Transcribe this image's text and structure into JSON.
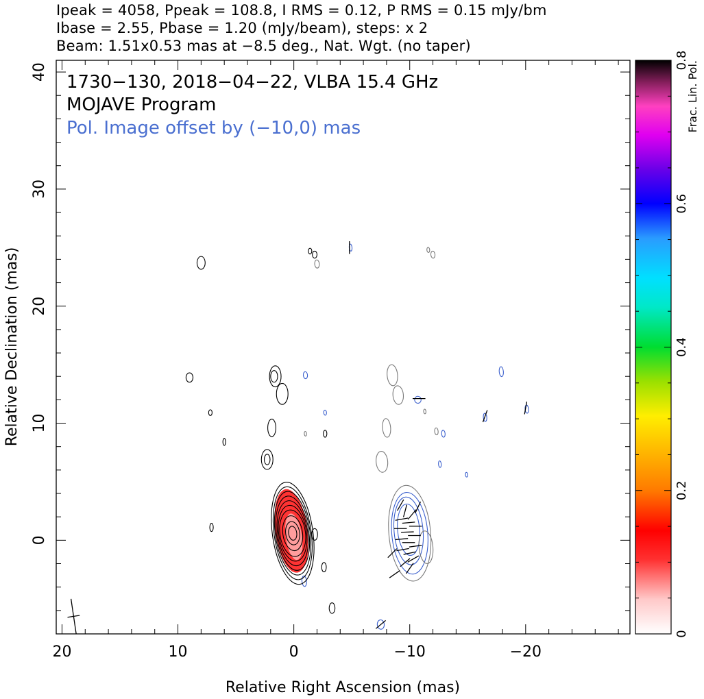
{
  "header": {
    "line1": "Ipeak = 4058, Ppeak = 108.8, I RMS = 0.12, P RMS = 0.15 mJy/bm",
    "line2": "Ibase = 2.55, Pbase = 1.20 (mJy/beam), steps: x 2",
    "line3": "Beam: 1.51x0.53 mas at −8.5 deg., Nat. Wgt. (no taper)"
  },
  "chart_data": {
    "type": "contour",
    "annotations": {
      "source": "1730−130, 2018−04−22, VLBA 15.4 GHz",
      "program": "MOJAVE Program",
      "offset_note": "Pol. Image offset by (−10,0) mas"
    },
    "xlabel": "Relative Right Ascension (mas)",
    "ylabel": "Relative Declination (mas)",
    "xlim": [
      20.5,
      -29
    ],
    "ylim": [
      -8,
      41
    ],
    "x_ticks": [
      20,
      10,
      0,
      -10,
      -20
    ],
    "x_tick_labels": [
      "20",
      "10",
      "0",
      "−10",
      "−20"
    ],
    "y_ticks": [
      0,
      10,
      20,
      30,
      40
    ],
    "y_tick_labels": [
      "0",
      "10",
      "20",
      "30",
      "40"
    ],
    "colorbar": {
      "label": "Frac. Lin. Pol.",
      "range": [
        0,
        0.8
      ],
      "ticks": [
        0,
        0.2,
        0.4,
        0.6,
        0.8
      ],
      "tick_labels": [
        "0",
        "0.2",
        "0.4",
        "0.6",
        "0.8"
      ]
    },
    "colors": {
      "stokes_i": "#000000",
      "polarization": "#3a5fcd",
      "pol_outer": "#7a7a7a",
      "offset_text": "#4a6fd0"
    },
    "stokes_i_core": {
      "x": 0.1,
      "y": 0.6,
      "levels": [
        {
          "rx": 1.1,
          "ry": 2.0
        },
        {
          "rx": 1.2,
          "ry": 2.4
        },
        {
          "rx": 1.3,
          "ry": 2.8
        },
        {
          "rx": 1.4,
          "ry": 3.2
        },
        {
          "rx": 1.5,
          "ry": 3.6
        },
        {
          "rx": 1.6,
          "ry": 4.0
        },
        {
          "rx": 1.75,
          "ry": 4.4
        },
        {
          "rx": 0.85,
          "ry": 1.5
        },
        {
          "rx": 0.6,
          "ry": 1.0
        },
        {
          "rx": 0.35,
          "ry": 0.6
        }
      ]
    },
    "stokes_i_blobs": [
      {
        "x": 1.6,
        "y": 14.0,
        "rx": 0.5,
        "ry": 0.9
      },
      {
        "x": 1.7,
        "y": 14.0,
        "rx": 0.3,
        "ry": 0.5
      },
      {
        "x": 1.0,
        "y": 12.5,
        "rx": 0.5,
        "ry": 0.9
      },
      {
        "x": 1.9,
        "y": 9.6,
        "rx": 0.35,
        "ry": 0.75
      },
      {
        "x": 2.3,
        "y": 6.9,
        "rx": 0.5,
        "ry": 0.85
      },
      {
        "x": 2.3,
        "y": 6.9,
        "rx": 0.25,
        "ry": 0.45
      },
      {
        "x": 8.0,
        "y": 23.7,
        "rx": 0.35,
        "ry": 0.55
      },
      {
        "x": 9.0,
        "y": 13.9,
        "rx": 0.3,
        "ry": 0.4
      },
      {
        "x": 7.2,
        "y": 10.9,
        "rx": 0.15,
        "ry": 0.25
      },
      {
        "x": 6.0,
        "y": 8.4,
        "rx": 0.12,
        "ry": 0.3
      },
      {
        "x": 7.1,
        "y": 1.1,
        "rx": 0.15,
        "ry": 0.35
      },
      {
        "x": -1.4,
        "y": 24.7,
        "rx": 0.15,
        "ry": 0.25
      },
      {
        "x": -1.8,
        "y": 24.4,
        "rx": 0.2,
        "ry": 0.3
      },
      {
        "x": -2.7,
        "y": 9.1,
        "rx": 0.15,
        "ry": 0.3
      },
      {
        "x": -2.6,
        "y": -2.3,
        "rx": 0.2,
        "ry": 0.4
      },
      {
        "x": -3.3,
        "y": -5.8,
        "rx": 0.25,
        "ry": 0.45
      },
      {
        "x": -1.8,
        "y": 0.5,
        "rx": 0.25,
        "ry": 0.5
      }
    ],
    "pol_blobs": [
      {
        "x": -10.0,
        "y": 0.6,
        "rx": 1.8,
        "ry": 4.1,
        "color": "#7a7a7a"
      },
      {
        "x": -10.0,
        "y": 0.6,
        "rx": 1.55,
        "ry": 3.5,
        "color": "#3a5fcd"
      },
      {
        "x": -9.9,
        "y": 0.8,
        "rx": 1.25,
        "ry": 2.9,
        "color": "#3a5fcd"
      },
      {
        "x": -9.9,
        "y": 0.9,
        "rx": 0.95,
        "ry": 2.2,
        "color": "#3a5fcd"
      },
      {
        "x": -11.4,
        "y": -0.6,
        "rx": 0.6,
        "ry": 1.4,
        "color": "#7a7a7a"
      },
      {
        "x": -8.5,
        "y": 14.1,
        "rx": 0.45,
        "ry": 0.9,
        "color": "#7a7a7a"
      },
      {
        "x": -9.0,
        "y": 12.4,
        "rx": 0.45,
        "ry": 0.8,
        "color": "#7a7a7a"
      },
      {
        "x": -8.0,
        "y": 9.6,
        "rx": 0.35,
        "ry": 0.8,
        "color": "#7a7a7a"
      },
      {
        "x": -7.6,
        "y": 6.7,
        "rx": 0.5,
        "ry": 0.9,
        "color": "#7a7a7a"
      },
      {
        "x": -1.0,
        "y": 14.1,
        "rx": 0.18,
        "ry": 0.3,
        "color": "#3a5fcd"
      },
      {
        "x": -2.7,
        "y": 10.9,
        "rx": 0.12,
        "ry": 0.22,
        "color": "#3a5fcd"
      },
      {
        "x": -2.0,
        "y": 23.6,
        "rx": 0.2,
        "ry": 0.35,
        "color": "#7a7a7a"
      },
      {
        "x": -4.9,
        "y": 25.0,
        "rx": 0.12,
        "ry": 0.3,
        "color": "#3a5fcd"
      },
      {
        "x": -11.6,
        "y": 24.8,
        "rx": 0.12,
        "ry": 0.22,
        "color": "#7a7a7a"
      },
      {
        "x": -12.0,
        "y": 24.4,
        "rx": 0.18,
        "ry": 0.3,
        "color": "#7a7a7a"
      },
      {
        "x": -10.7,
        "y": 12.0,
        "rx": 0.28,
        "ry": 0.3,
        "color": "#3a5fcd"
      },
      {
        "x": -11.3,
        "y": 11.0,
        "rx": 0.1,
        "ry": 0.2,
        "color": "#7a7a7a"
      },
      {
        "x": -12.3,
        "y": 9.3,
        "rx": 0.15,
        "ry": 0.3,
        "color": "#7a7a7a"
      },
      {
        "x": -12.9,
        "y": 9.1,
        "rx": 0.15,
        "ry": 0.3,
        "color": "#3a5fcd"
      },
      {
        "x": -12.6,
        "y": 6.5,
        "rx": 0.12,
        "ry": 0.28,
        "color": "#3a5fcd"
      },
      {
        "x": -14.9,
        "y": 5.6,
        "rx": 0.1,
        "ry": 0.2,
        "color": "#3a5fcd"
      },
      {
        "x": -17.9,
        "y": 14.4,
        "rx": 0.18,
        "ry": 0.42,
        "color": "#3a5fcd"
      },
      {
        "x": -16.5,
        "y": 10.5,
        "rx": 0.15,
        "ry": 0.35,
        "color": "#3a5fcd"
      },
      {
        "x": -20.1,
        "y": 11.2,
        "rx": 0.15,
        "ry": 0.35,
        "color": "#3a5fcd"
      },
      {
        "x": -1.0,
        "y": 9.1,
        "rx": 0.1,
        "ry": 0.2,
        "color": "#7a7a7a"
      },
      {
        "x": -0.9,
        "y": -3.5,
        "rx": 0.2,
        "ry": 0.45,
        "color": "#3a5fcd"
      },
      {
        "x": -7.5,
        "y": -7.2,
        "rx": 0.3,
        "ry": 0.4,
        "color": "#3a5fcd"
      }
    ],
    "evpa_vectors": [
      {
        "x": -9.2,
        "y": 3.0,
        "a": 60
      },
      {
        "x": -9.6,
        "y": 2.5,
        "a": 75
      },
      {
        "x": -10.2,
        "y": 2.2,
        "a": 50
      },
      {
        "x": -9.3,
        "y": 1.8,
        "a": 10
      },
      {
        "x": -9.9,
        "y": 1.5,
        "a": 5
      },
      {
        "x": -10.5,
        "y": 1.2,
        "a": 0
      },
      {
        "x": -9.2,
        "y": 1.0,
        "a": 0
      },
      {
        "x": -9.8,
        "y": 0.7,
        "a": 2
      },
      {
        "x": -10.4,
        "y": 0.4,
        "a": 0
      },
      {
        "x": -9.3,
        "y": 0.1,
        "a": 5
      },
      {
        "x": -9.9,
        "y": -0.2,
        "a": 0
      },
      {
        "x": -10.5,
        "y": -0.5,
        "a": 8
      },
      {
        "x": -9.4,
        "y": -0.8,
        "a": 10
      },
      {
        "x": -10.0,
        "y": -1.1,
        "a": 12
      },
      {
        "x": -10.3,
        "y": -1.6,
        "a": 30
      },
      {
        "x": -9.6,
        "y": -1.9,
        "a": 40
      },
      {
        "x": -10.0,
        "y": -2.4,
        "a": 55
      },
      {
        "x": -10.7,
        "y": 2.8,
        "a": 65
      },
      {
        "x": -8.7,
        "y": -2.9,
        "a": 35
      },
      {
        "x": -10.8,
        "y": 12.1,
        "a": 0
      },
      {
        "x": -16.5,
        "y": 10.6,
        "a": 70
      },
      {
        "x": -20.0,
        "y": 11.3,
        "a": 80
      },
      {
        "x": -4.8,
        "y": 25.0,
        "a": 90
      },
      {
        "x": -7.5,
        "y": -7.2,
        "a": 40
      },
      {
        "x": -8.5,
        "y": -1.1,
        "a": 45
      }
    ],
    "core_fracpol": [
      {
        "x": 0.2,
        "y": 0.8,
        "rx": 1.4,
        "ry": 3.6,
        "frac": 0.12
      },
      {
        "x": 0.0,
        "y": 0.3,
        "rx": 0.7,
        "ry": 2.0,
        "frac": 0.06
      }
    ],
    "beam": {
      "x": 19.0,
      "y": -6.5,
      "major": 1.51,
      "minor": 0.53,
      "pa": -8.5
    }
  }
}
